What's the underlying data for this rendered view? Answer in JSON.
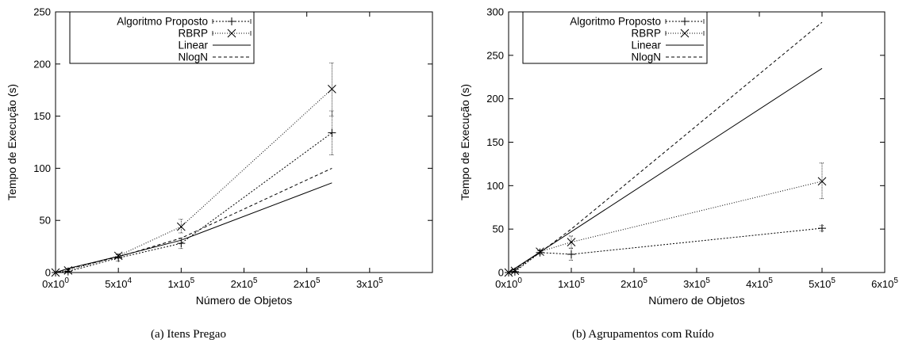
{
  "chart_data": [
    {
      "type": "line",
      "caption": "(a) Itens Pregao",
      "xlabel": "Número de Objetos",
      "ylabel": "Tempo de Execução (s)",
      "xlim": [
        0,
        300000
      ],
      "ylim": [
        0,
        250
      ],
      "xticks": [
        {
          "v": 0,
          "base": "0x10",
          "exp": "0"
        },
        {
          "v": 50000,
          "base": "5x10",
          "exp": "4"
        },
        {
          "v": 100000,
          "base": "1x10",
          "exp": "5"
        },
        {
          "v": 150000,
          "base": "2x10",
          "exp": "5"
        },
        {
          "v": 200000,
          "base": "2x10",
          "exp": "5"
        },
        {
          "v": 250000,
          "base": "3x10",
          "exp": "5"
        }
      ],
      "yticks": [
        0,
        50,
        100,
        150,
        200,
        250
      ],
      "grid": false,
      "legend_position": "top-left",
      "series": [
        {
          "name": "Algoritmo Proposto",
          "marker": "plus",
          "dash": "2,2",
          "points": [
            {
              "x": 0,
              "y": 0,
              "err": [
                0,
                0
              ]
            },
            {
              "x": 10000,
              "y": 1,
              "err": [
                0.5,
                1.5
              ]
            },
            {
              "x": 50000,
              "y": 14,
              "err": [
                11,
                17
              ]
            },
            {
              "x": 100000,
              "y": 28,
              "err": [
                23,
                33
              ]
            },
            {
              "x": 220000,
              "y": 134,
              "err": [
                113,
                155
              ]
            }
          ]
        },
        {
          "name": "RBRP",
          "marker": "cross",
          "dash": "1,2",
          "points": [
            {
              "x": 0,
              "y": 0,
              "err": [
                0,
                0
              ]
            },
            {
              "x": 10000,
              "y": 2,
              "err": [
                1,
                3
              ]
            },
            {
              "x": 50000,
              "y": 16,
              "err": [
                14,
                18
              ]
            },
            {
              "x": 100000,
              "y": 44,
              "err": [
                38,
                51
              ]
            },
            {
              "x": 220000,
              "y": 176,
              "err": [
                150,
                201
              ]
            }
          ]
        },
        {
          "name": "Linear",
          "marker": "none",
          "dash": "",
          "points": [
            {
              "x": 0,
              "y": 0
            },
            {
              "x": 10000,
              "y": 3.9
            },
            {
              "x": 50000,
              "y": 15.5
            },
            {
              "x": 100000,
              "y": 31
            },
            {
              "x": 220000,
              "y": 86
            }
          ]
        },
        {
          "name": "NlogN",
          "marker": "none",
          "dash": "4,3",
          "points": [
            {
              "x": 0,
              "y": 0
            },
            {
              "x": 10000,
              "y": 3.5
            },
            {
              "x": 50000,
              "y": 15
            },
            {
              "x": 100000,
              "y": 33
            },
            {
              "x": 220000,
              "y": 100
            }
          ]
        }
      ]
    },
    {
      "type": "line",
      "caption": "(b) Agrupamentos com Ruído",
      "xlabel": "Número de Objetos",
      "ylabel": "Tempo de Execução (s)",
      "xlim": [
        0,
        600000
      ],
      "ylim": [
        0,
        300
      ],
      "xticks": [
        {
          "v": 0,
          "base": "0x10",
          "exp": "0"
        },
        {
          "v": 100000,
          "base": "1x10",
          "exp": "5"
        },
        {
          "v": 200000,
          "base": "2x10",
          "exp": "5"
        },
        {
          "v": 300000,
          "base": "3x10",
          "exp": "5"
        },
        {
          "v": 400000,
          "base": "4x10",
          "exp": "5"
        },
        {
          "v": 500000,
          "base": "5x10",
          "exp": "5"
        },
        {
          "v": 600000,
          "base": "6x10",
          "exp": "5"
        }
      ],
      "yticks": [
        0,
        50,
        100,
        150,
        200,
        250,
        300
      ],
      "grid": false,
      "legend_position": "top-left",
      "series": [
        {
          "name": "Algoritmo Proposto",
          "marker": "plus",
          "dash": "2,2",
          "points": [
            {
              "x": 0,
              "y": 0,
              "err": [
                0,
                0
              ]
            },
            {
              "x": 10000,
              "y": 1,
              "err": [
                0.5,
                1.5
              ]
            },
            {
              "x": 50000,
              "y": 23,
              "err": [
                21,
                25
              ]
            },
            {
              "x": 100000,
              "y": 21,
              "err": [
                14,
                28
              ]
            },
            {
              "x": 500000,
              "y": 51,
              "err": [
                48,
                54
              ]
            }
          ]
        },
        {
          "name": "RBRP",
          "marker": "cross",
          "dash": "1,2",
          "points": [
            {
              "x": 0,
              "y": 0,
              "err": [
                0,
                0
              ]
            },
            {
              "x": 10000,
              "y": 2,
              "err": [
                1,
                3
              ]
            },
            {
              "x": 50000,
              "y": 24,
              "err": [
                22,
                26
              ]
            },
            {
              "x": 100000,
              "y": 35,
              "err": [
                28,
                42
              ]
            },
            {
              "x": 500000,
              "y": 105,
              "err": [
                85,
                126
              ]
            }
          ]
        },
        {
          "name": "Linear",
          "marker": "none",
          "dash": "",
          "points": [
            {
              "x": 0,
              "y": 0
            },
            {
              "x": 10000,
              "y": 4.7
            },
            {
              "x": 50000,
              "y": 23.5
            },
            {
              "x": 100000,
              "y": 47
            },
            {
              "x": 500000,
              "y": 235
            }
          ]
        },
        {
          "name": "NlogN",
          "marker": "none",
          "dash": "4,3",
          "points": [
            {
              "x": 0,
              "y": 0
            },
            {
              "x": 10000,
              "y": 4
            },
            {
              "x": 50000,
              "y": 23
            },
            {
              "x": 100000,
              "y": 50
            },
            {
              "x": 500000,
              "y": 288
            }
          ]
        }
      ]
    }
  ]
}
